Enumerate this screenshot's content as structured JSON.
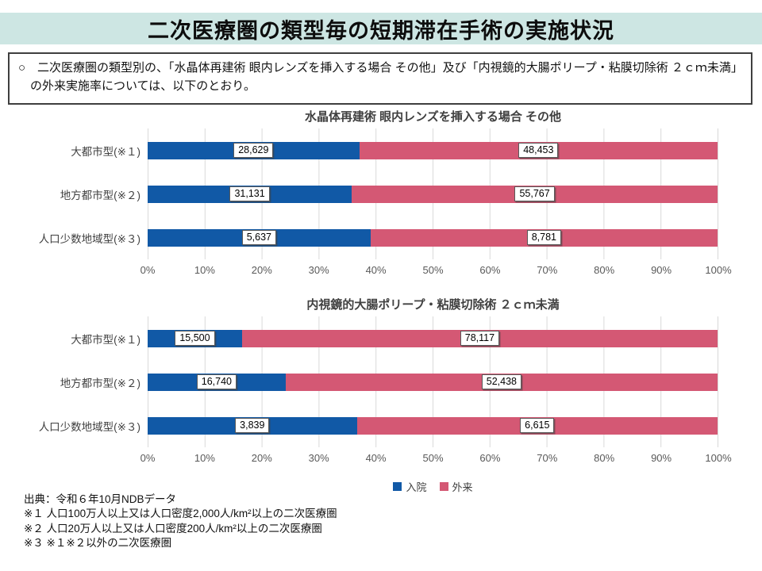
{
  "title": "二次医療圏の類型毎の短期滞在手術の実施状況",
  "intro": {
    "text": "○　二次医療圏の類型別の、「水晶体再建術 眼内レンズを挿入する場合 その他」及び「内視鏡的大腸ポリープ・粘膜切除術 ２ｃｍ未満」の外来実施率については、以下のとおり。"
  },
  "colors": {
    "inpatient_blue": "#1159A6",
    "outpatient_pink": "#D45874",
    "header_band_teal": "#CDE6E3",
    "gridline_gray": "#D9D9D9"
  },
  "legend": [
    {
      "label": "入院",
      "color": "#1159A6"
    },
    {
      "label": "外来",
      "color": "#D45874"
    }
  ],
  "chart_data": [
    {
      "type": "bar",
      "orientation": "horizontal",
      "stacked": true,
      "percent_stacked": true,
      "grid": true,
      "title": "水晶体再建術 眼内レンズを挿入する場合 その他",
      "categories": [
        "大都市型(※１)",
        "地方都市型(※２)",
        "人口少数地域型(※３)"
      ],
      "series": [
        {
          "name": "入院",
          "color": "#1159A6",
          "values": [
            28629,
            31131,
            5637
          ]
        },
        {
          "name": "外来",
          "color": "#D45874",
          "values": [
            48453,
            55767,
            8781
          ]
        }
      ],
      "data_labels": [
        [
          "28,629",
          "48,453"
        ],
        [
          "31,131",
          "55,767"
        ],
        [
          "5,637",
          "8,781"
        ]
      ],
      "x_axis": {
        "lim": [
          0,
          100
        ],
        "ticks": [
          "0%",
          "10%",
          "20%",
          "30%",
          "40%",
          "50%",
          "60%",
          "70%",
          "80%",
          "90%",
          "100%"
        ]
      }
    },
    {
      "type": "bar",
      "orientation": "horizontal",
      "stacked": true,
      "percent_stacked": true,
      "grid": true,
      "title": "内視鏡的大腸ポリープ・粘膜切除術 ２ｃｍ未満",
      "categories": [
        "大都市型(※１)",
        "地方都市型(※２)",
        "人口少数地域型(※３)"
      ],
      "series": [
        {
          "name": "入院",
          "color": "#1159A6",
          "values": [
            15500,
            16740,
            3839
          ]
        },
        {
          "name": "外来",
          "color": "#D45874",
          "values": [
            78117,
            52438,
            6615
          ]
        }
      ],
      "data_labels": [
        [
          "15,500",
          "78,117"
        ],
        [
          "16,740",
          "52,438"
        ],
        [
          "3,839",
          "6,615"
        ]
      ],
      "x_axis": {
        "lim": [
          0,
          100
        ],
        "ticks": [
          "0%",
          "10%",
          "20%",
          "30%",
          "40%",
          "50%",
          "60%",
          "70%",
          "80%",
          "90%",
          "100%"
        ]
      }
    }
  ],
  "footer": {
    "source": "出典：令和６年10月NDBデータ",
    "notes": [
      "※１ 人口100万人以上又は人口密度2,000人/km²以上の二次医療圏",
      "※２ 人口20万人以上又は人口密度200人/km²以上の二次医療圏",
      "※３ ※１※２以外の二次医療圏"
    ]
  }
}
